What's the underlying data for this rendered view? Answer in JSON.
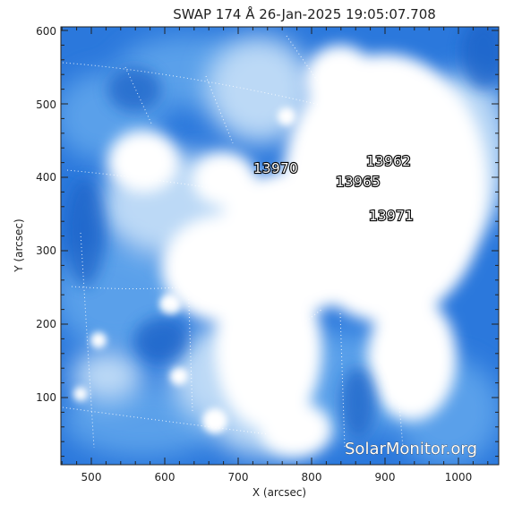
{
  "title": "SWAP 174 Å 26-Jan-2025 19:05:07.708",
  "xlabel": "X (arcsec)",
  "ylabel": "Y (arcsec)",
  "x_ticks": [
    "500",
    "600",
    "700",
    "800",
    "900",
    "1000"
  ],
  "y_ticks": [
    "100",
    "200",
    "300",
    "400",
    "500",
    "600"
  ],
  "regions": [
    {
      "id": "13970",
      "label": "13970"
    },
    {
      "id": "13962",
      "label": "13962"
    },
    {
      "id": "13965",
      "label": "13965"
    },
    {
      "id": "13971",
      "label": "13971"
    }
  ],
  "watermark": "SolarMonitor.org",
  "colors": {
    "deep_blue": "#1f6fd6",
    "mid_blue": "#5aa0ea",
    "light_blue": "#bcd9f6",
    "saturated": "#ffffff"
  }
}
